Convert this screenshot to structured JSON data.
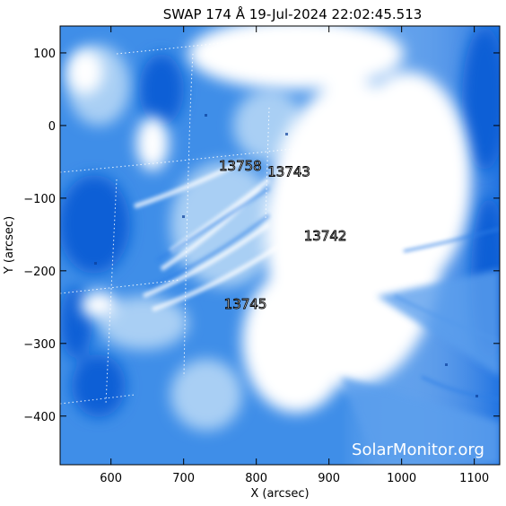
{
  "title": "SWAP 174 Å 19-Jul-2024 22:02:45.513",
  "x_axis": {
    "label": "X (arcsec)",
    "range": [
      530,
      1135
    ],
    "ticks": [
      600,
      700,
      800,
      900,
      1000,
      1100
    ],
    "tick_labels": [
      "600",
      "700",
      "800",
      "900",
      "1000",
      "1100"
    ]
  },
  "y_axis": {
    "label": "Y (arcsec)",
    "range": [
      -467,
      137
    ],
    "ticks": [
      100,
      0,
      -100,
      -200,
      -300,
      -400
    ],
    "tick_labels": [
      "100",
      "0",
      "−100",
      "−200",
      "−300",
      "−400"
    ]
  },
  "active_regions": [
    {
      "label": "13758",
      "x": 778,
      "y": -62
    },
    {
      "label": "13743",
      "x": 845,
      "y": -70
    },
    {
      "label": "13742",
      "x": 895,
      "y": -158
    },
    {
      "label": "13745",
      "x": 785,
      "y": -252
    }
  ],
  "watermark": "SolarMonitor.org",
  "colors": {
    "deep_blue": "#0a5fd6",
    "mid_blue": "#3a8ae6",
    "light_blue": "#a9cff4",
    "bright": "#ffffff"
  }
}
